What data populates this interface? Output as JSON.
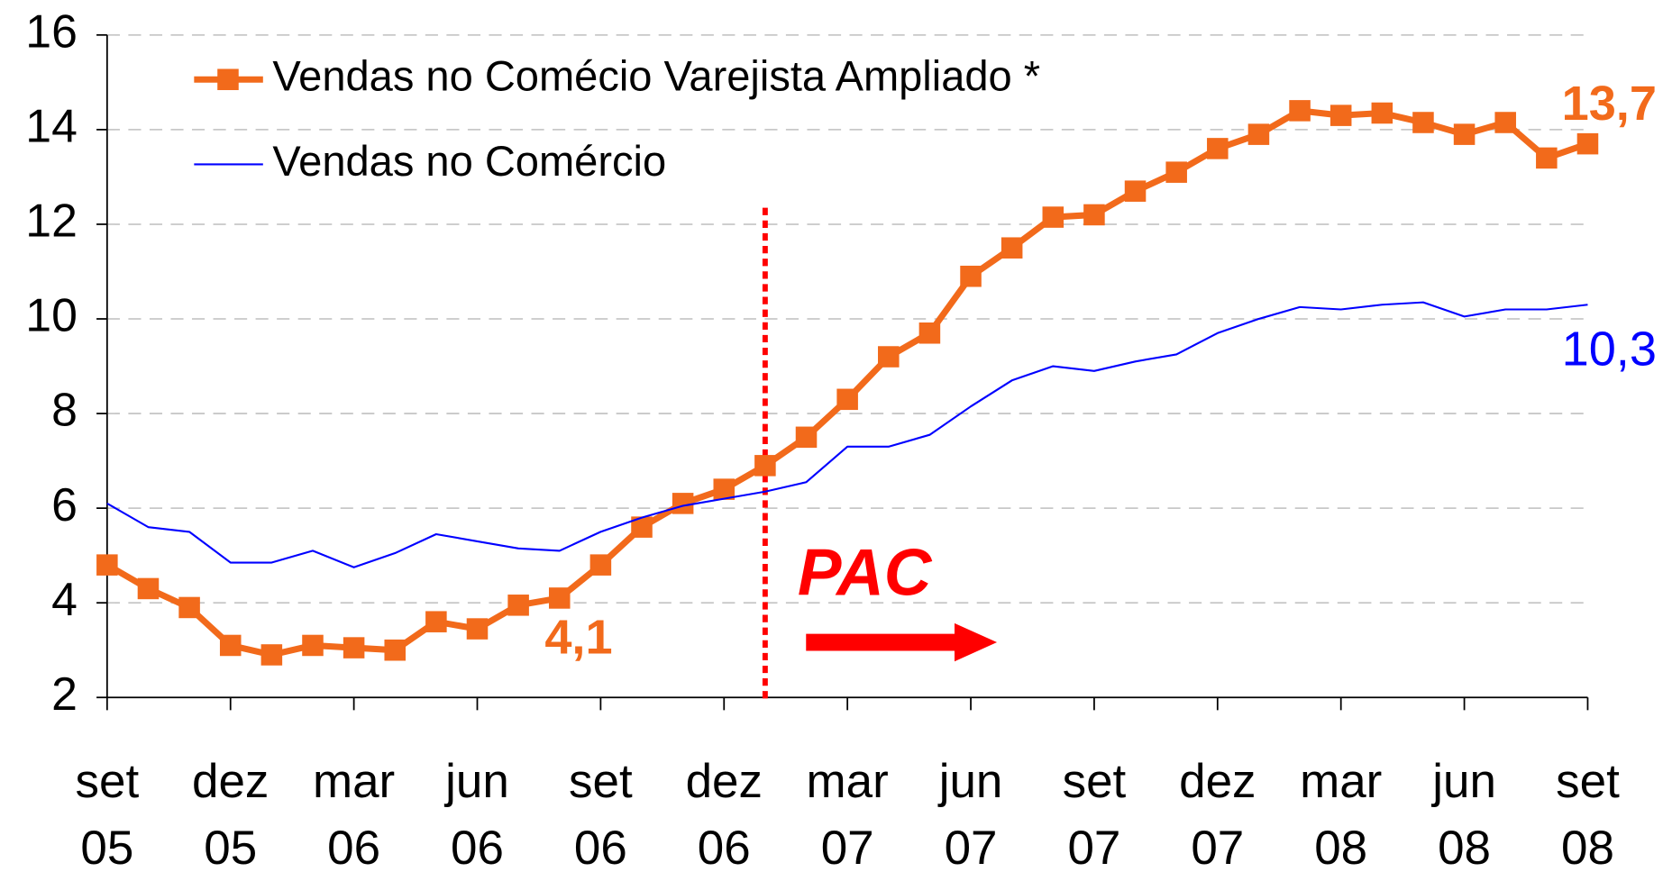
{
  "chart_data": {
    "type": "line",
    "categories": [
      "set\n05",
      null,
      null,
      "dez\n05",
      null,
      null,
      "mar\n06",
      null,
      null,
      "jun\n06",
      null,
      null,
      "set\n06",
      null,
      null,
      "dez\n06",
      null,
      null,
      "mar\n07",
      null,
      null,
      "jun\n07",
      null,
      null,
      "set\n07",
      null,
      null,
      "dez\n07",
      null,
      null,
      "mar\n08",
      null,
      null,
      "jun\n08",
      null,
      null,
      "set\n08"
    ],
    "series": [
      {
        "name": "Vendas no Comécio Varejista Ampliado *",
        "color": "#f26a1b",
        "values": [
          4.8,
          4.3,
          3.9,
          3.1,
          2.9,
          3.1,
          3.05,
          3.0,
          3.6,
          3.45,
          3.95,
          4.1,
          4.8,
          5.6,
          6.1,
          6.4,
          6.9,
          7.5,
          8.3,
          9.2,
          9.7,
          10.9,
          11.5,
          12.15,
          12.2,
          12.7,
          13.1,
          13.6,
          13.9,
          14.4,
          14.3,
          14.35,
          14.15,
          13.9,
          14.15,
          13.4,
          13.7
        ],
        "value_labels": [
          null,
          null,
          null,
          null,
          null,
          null,
          null,
          null,
          null,
          null,
          null,
          "4,1",
          null,
          null,
          null,
          null,
          null,
          null,
          null,
          null,
          null,
          null,
          null,
          null,
          null,
          null,
          null,
          null,
          null,
          null,
          null,
          null,
          null,
          null,
          null,
          null,
          "13,7"
        ]
      },
      {
        "name": "Vendas no Comércio",
        "color": "#0000ff",
        "values": [
          6.1,
          5.6,
          5.5,
          4.85,
          4.85,
          5.1,
          4.75,
          5.05,
          5.45,
          5.3,
          5.15,
          5.1,
          5.5,
          5.8,
          6.05,
          6.2,
          6.35,
          6.55,
          7.3,
          7.3,
          7.55,
          8.15,
          8.7,
          9.0,
          8.9,
          9.1,
          9.25,
          9.7,
          10.0,
          10.25,
          10.2,
          10.3,
          10.35,
          10.05,
          10.2,
          10.2,
          10.3
        ],
        "value_labels": [
          null,
          null,
          null,
          null,
          null,
          null,
          null,
          null,
          null,
          null,
          null,
          null,
          null,
          null,
          null,
          null,
          null,
          null,
          null,
          null,
          null,
          null,
          null,
          null,
          null,
          null,
          null,
          null,
          null,
          null,
          null,
          null,
          null,
          null,
          null,
          null,
          "10,3"
        ]
      }
    ],
    "annotation": "PAC",
    "ylim": [
      2,
      16
    ],
    "yticks": [
      2,
      4,
      6,
      8,
      10,
      12,
      14,
      16
    ],
    "grid": true
  }
}
